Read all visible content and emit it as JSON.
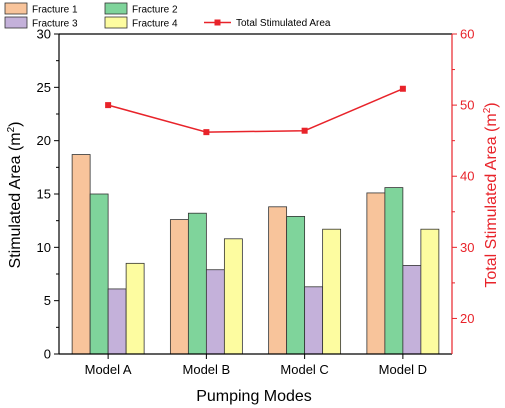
{
  "chart_data": {
    "type": "bar",
    "categories": [
      "Model A",
      "Model B",
      "Model C",
      "Model D"
    ],
    "series": [
      {
        "name": "Fracture 1",
        "values": [
          18.7,
          12.6,
          13.8,
          15.1
        ],
        "color": "#f8c49b"
      },
      {
        "name": "Fracture 2",
        "values": [
          15.0,
          13.2,
          12.9,
          15.6
        ],
        "color": "#7fd49b"
      },
      {
        "name": "Fracture 3",
        "values": [
          6.1,
          7.9,
          6.3,
          8.3
        ],
        "color": "#c4b1da"
      },
      {
        "name": "Fracture 4",
        "values": [
          8.5,
          10.8,
          11.7,
          11.7
        ],
        "color": "#fdfca0"
      }
    ],
    "line_series": {
      "name": "Total Stimulated Area",
      "values": [
        50.0,
        46.2,
        46.4,
        52.3
      ],
      "color": "#e8232a",
      "axis": "right"
    },
    "xlabel": "Pumping Modes",
    "ylabel": "Stimulated Area (m",
    "ylabel_sup": "2",
    "ylabel_close": ")",
    "y2label": "Total Stimulated Area (m",
    "y2label_sup": "2",
    "y2label_close": ")",
    "ylim": [
      0,
      30
    ],
    "y2lim": [
      15,
      60
    ],
    "yticks": [
      0,
      5,
      10,
      15,
      20,
      25,
      30
    ],
    "y2ticks": [
      20,
      30,
      40,
      50,
      60
    ],
    "legend_position": "top",
    "grid": false
  }
}
